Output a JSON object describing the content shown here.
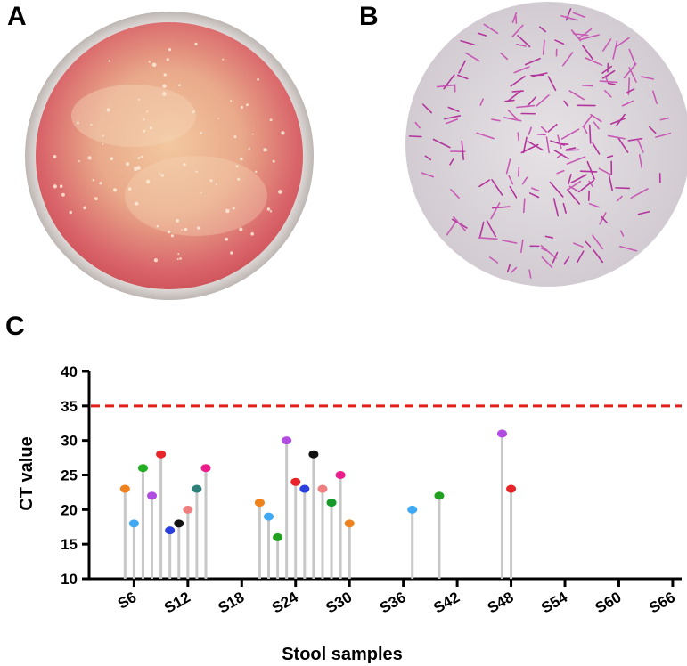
{
  "panels": {
    "a": "A",
    "b": "B",
    "c": "C"
  },
  "chart_data": {
    "type": "lollipop",
    "xlabel": "Stool samples",
    "ylabel": "CT value",
    "ylim": [
      10,
      40
    ],
    "yticks": [
      10,
      15,
      20,
      25,
      30,
      35,
      40
    ],
    "xlim": [
      1,
      67
    ],
    "xtick_values": [
      6,
      12,
      18,
      24,
      30,
      36,
      42,
      48,
      54,
      60,
      66
    ],
    "xtick_labels": [
      "S6",
      "S12",
      "S18",
      "S24",
      "S30",
      "S36",
      "S42",
      "S48",
      "S54",
      "S60",
      "S66"
    ],
    "threshold": {
      "value": 35,
      "color": "#e0201b",
      "style": "dashed"
    },
    "stem_color": "#c8c8c8",
    "points": [
      {
        "x": 5,
        "y": 23,
        "color": "#f0821e"
      },
      {
        "x": 6,
        "y": 18,
        "color": "#3fa9f5"
      },
      {
        "x": 7,
        "y": 26,
        "color": "#22b022"
      },
      {
        "x": 8,
        "y": 22,
        "color": "#b04ce0"
      },
      {
        "x": 9,
        "y": 28,
        "color": "#e8232a"
      },
      {
        "x": 10,
        "y": 17,
        "color": "#2b3fe0"
      },
      {
        "x": 11,
        "y": 18,
        "color": "#111111"
      },
      {
        "x": 12,
        "y": 20,
        "color": "#f08080"
      },
      {
        "x": 13,
        "y": 23,
        "color": "#2f7f7a"
      },
      {
        "x": 14,
        "y": 26,
        "color": "#ec1c8c"
      },
      {
        "x": 20,
        "y": 21,
        "color": "#f0821e"
      },
      {
        "x": 21,
        "y": 19,
        "color": "#3fa9f5"
      },
      {
        "x": 22,
        "y": 16,
        "color": "#22a022"
      },
      {
        "x": 23,
        "y": 30,
        "color": "#b04ce0"
      },
      {
        "x": 24,
        "y": 24,
        "color": "#e8232a"
      },
      {
        "x": 25,
        "y": 23,
        "color": "#2b3fe0"
      },
      {
        "x": 26,
        "y": 28,
        "color": "#111111"
      },
      {
        "x": 27,
        "y": 23,
        "color": "#f08080"
      },
      {
        "x": 28,
        "y": 21,
        "color": "#159a2a"
      },
      {
        "x": 29,
        "y": 25,
        "color": "#ec1c8c"
      },
      {
        "x": 30,
        "y": 18,
        "color": "#f0821e"
      },
      {
        "x": 37,
        "y": 20,
        "color": "#3fa9f5"
      },
      {
        "x": 40,
        "y": 22,
        "color": "#22a022"
      },
      {
        "x": 47,
        "y": 31,
        "color": "#b04ce0"
      },
      {
        "x": 48,
        "y": 23,
        "color": "#e8232a"
      }
    ]
  }
}
